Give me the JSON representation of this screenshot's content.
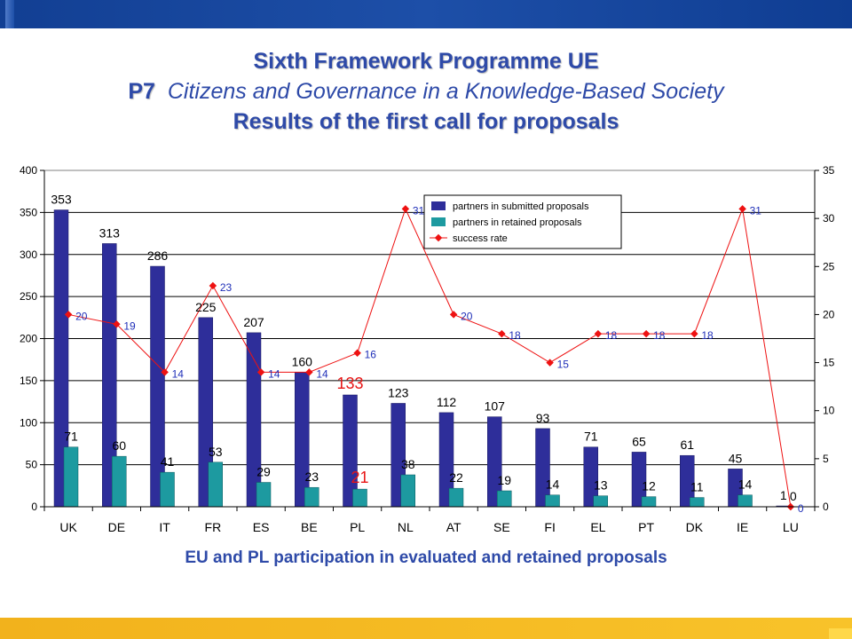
{
  "header": {
    "title_line1": "Sixth Framework Programme UE",
    "title_line2_prefix": "P7",
    "title_line2_text": "Citizens and Governance in a Knowledge-Based Society",
    "title_line3": "Results of the first call for proposals"
  },
  "caption": "EU and PL participation in evaluated and retained proposals",
  "colors": {
    "submitted": "#2e2e9a",
    "retained": "#1d9aa0",
    "success": "#ee1111",
    "rate_label": "#1f2fb8",
    "highlight": "#e81515",
    "heading": "#2e4aa8"
  },
  "chart_data": {
    "type": "bar",
    "categories": [
      "UK",
      "DE",
      "IT",
      "FR",
      "ES",
      "BE",
      "PL",
      "NL",
      "AT",
      "SE",
      "FI",
      "EL",
      "PT",
      "DK",
      "IE",
      "LU"
    ],
    "series": [
      {
        "name": "partners in submitted proposals",
        "type": "bar",
        "axis": "left",
        "values": [
          353,
          313,
          286,
          225,
          207,
          160,
          133,
          123,
          112,
          107,
          93,
          71,
          65,
          61,
          45,
          1
        ]
      },
      {
        "name": "partners in retained proposals",
        "type": "bar",
        "axis": "left",
        "values": [
          71,
          60,
          41,
          53,
          29,
          23,
          21,
          38,
          22,
          19,
          14,
          13,
          12,
          11,
          14,
          0
        ]
      },
      {
        "name": "success rate",
        "type": "line",
        "axis": "right",
        "values": [
          20,
          19,
          14,
          23,
          14,
          14,
          16,
          31,
          20,
          18,
          15,
          18,
          18,
          18,
          31,
          0
        ]
      }
    ],
    "left_axis": {
      "min": 0,
      "max": 400,
      "step": 50
    },
    "right_axis": {
      "min": 0,
      "max": 35,
      "step": 5
    },
    "grid": true,
    "legend": "top-center",
    "highlight_category": "PL"
  }
}
